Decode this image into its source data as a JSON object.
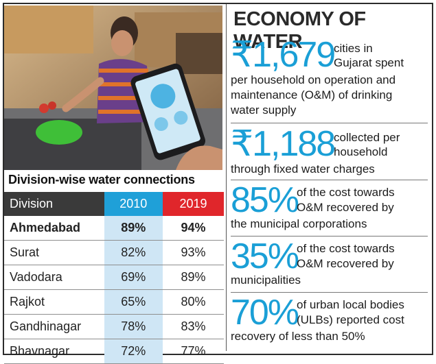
{
  "table": {
    "title": "Division-wise water connections",
    "headers": {
      "division": "Division",
      "y2010": "2010",
      "y2019": "2019"
    },
    "rows": [
      {
        "division": "Ahmedabad",
        "y2010": "89%",
        "y2019": "94%"
      },
      {
        "division": "Surat",
        "y2010": "82%",
        "y2019": "93%"
      },
      {
        "division": "Vadodara",
        "y2010": "69%",
        "y2019": "89%"
      },
      {
        "division": "Rajkot",
        "y2010": "65%",
        "y2019": "80%"
      },
      {
        "division": "Gandhinagar",
        "y2010": "78%",
        "y2019": "83%"
      },
      {
        "division": "Bhavnagar",
        "y2010": "72%",
        "y2019": "77%"
      }
    ]
  },
  "economy": {
    "title": "ECONOMY OF WATER",
    "stats": [
      {
        "value": "₹1,679",
        "text_a": "cities in",
        "text_b": "Gujarat spent",
        "text_c": "per household on operation and",
        "text_d": "maintenance (O&M) of drinking",
        "text_e": "water supply"
      },
      {
        "value": "₹1,188",
        "text_a": "collected per",
        "text_b": "household",
        "text_c": "through fixed water charges"
      },
      {
        "value": "85%",
        "text_a": "of the cost towards",
        "text_b": "O&M recovered by",
        "text_c": "the municipal corporations"
      },
      {
        "value": "35%",
        "text_a": "of the cost towards",
        "text_b": "O&M recovered by",
        "text_c": "municipalities"
      },
      {
        "value": "70%",
        "text_a": "of urban local bodies",
        "text_b": "(ULBs) reported cost",
        "text_c": "recovery of less than 50%"
      }
    ]
  },
  "colors": {
    "accent_blue": "#1a9fd6",
    "accent_red": "#e0262b",
    "header_dark": "#3a3a3a",
    "col_2010_fill": "#cfe6f5"
  }
}
